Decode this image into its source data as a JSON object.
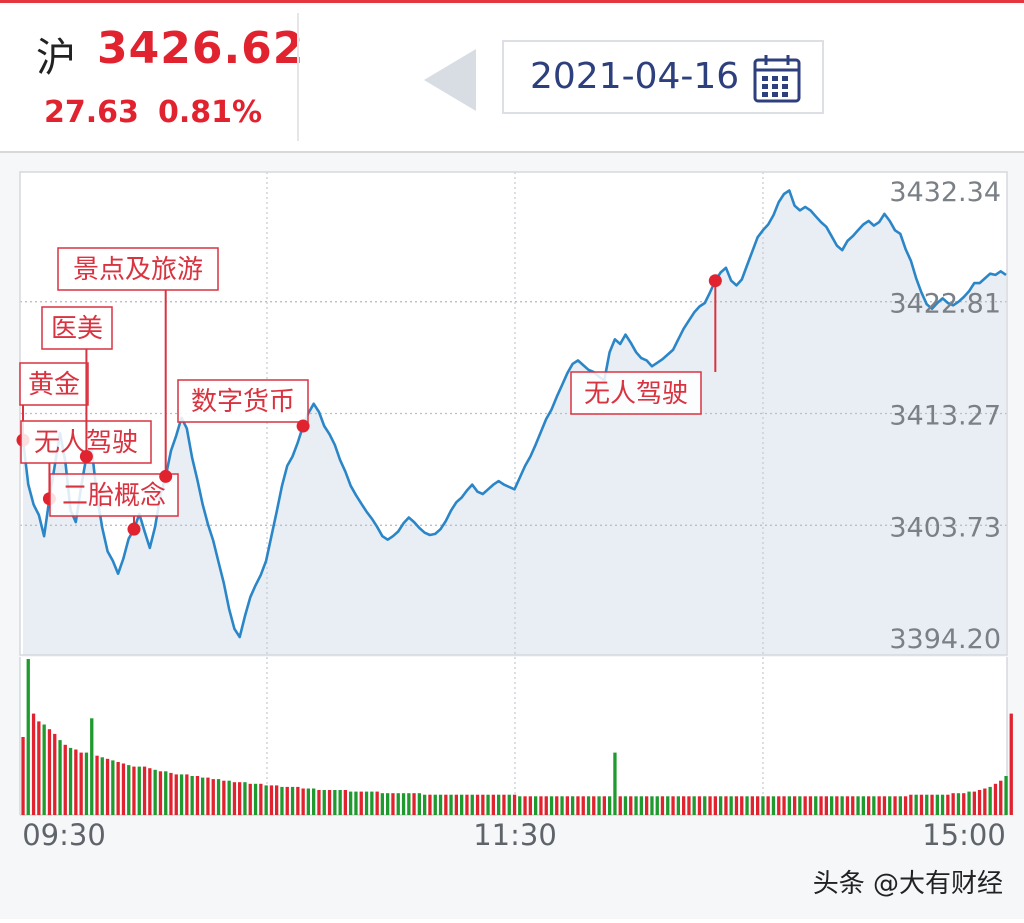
{
  "header": {
    "index_name": "沪",
    "index_value": "3426.62",
    "change": "27.63",
    "change_pct": "0.81%",
    "date": "2021-04-16",
    "up_color": "#e0232f"
  },
  "watermark": "头条 @大有财经",
  "chart_data": {
    "type": "line",
    "x_labels": [
      "09:30",
      "11:30",
      "15:00"
    ],
    "y_ticks": [
      "3432.34",
      "3422.81",
      "3413.27",
      "3403.73",
      "3394.20"
    ],
    "ylim": [
      3394.2,
      3432.34
    ],
    "line_color": "#2b86c8",
    "area_color": "#e9eef4",
    "prices": [
      3411.0,
      3407.2,
      3405.5,
      3404.6,
      3402.8,
      3406.0,
      3408.8,
      3411.6,
      3409.2,
      3405.0,
      3404.0,
      3407.0,
      3409.6,
      3410.3,
      3406.2,
      3403.5,
      3401.5,
      3400.7,
      3399.6,
      3400.9,
      3402.6,
      3403.4,
      3404.7,
      3403.2,
      3401.8,
      3403.6,
      3406.3,
      3407.9,
      3410.1,
      3411.4,
      3412.9,
      3412.0,
      3409.5,
      3407.6,
      3405.5,
      3403.8,
      3402.4,
      3400.6,
      3398.8,
      3396.6,
      3394.9,
      3394.2,
      3396.0,
      3397.6,
      3398.6,
      3399.5,
      3400.7,
      3402.8,
      3404.9,
      3407.1,
      3408.8,
      3409.6,
      3410.8,
      3412.2,
      3413.3,
      3414.1,
      3413.4,
      3412.2,
      3411.5,
      3410.6,
      3409.3,
      3408.3,
      3407.1,
      3406.3,
      3405.6,
      3404.9,
      3404.3,
      3403.6,
      3402.8,
      3402.5,
      3402.8,
      3403.2,
      3403.9,
      3404.4,
      3404.0,
      3403.5,
      3403.1,
      3402.9,
      3403.0,
      3403.4,
      3404.1,
      3405.0,
      3405.7,
      3406.1,
      3406.7,
      3407.2,
      3406.6,
      3406.4,
      3406.8,
      3407.2,
      3407.5,
      3407.2,
      3407.0,
      3406.8,
      3407.8,
      3408.8,
      3409.6,
      3410.6,
      3411.7,
      3412.8,
      3413.6,
      3414.7,
      3415.7,
      3416.7,
      3417.5,
      3417.8,
      3417.4,
      3417.0,
      3416.8,
      3416.4,
      3416.1,
      3418.5,
      3419.6,
      3419.2,
      3420.0,
      3419.3,
      3418.5,
      3418.0,
      3417.8,
      3417.3,
      3417.6,
      3417.9,
      3418.3,
      3418.7,
      3419.6,
      3420.5,
      3421.2,
      3421.9,
      3422.4,
      3422.7,
      3423.6,
      3424.6,
      3425.3,
      3425.7,
      3424.6,
      3424.2,
      3424.7,
      3425.9,
      3427.1,
      3428.3,
      3428.9,
      3429.4,
      3430.2,
      3431.3,
      3432.0,
      3432.3,
      3431.0,
      3430.6,
      3430.9,
      3430.6,
      3430.1,
      3429.6,
      3429.2,
      3428.4,
      3427.6,
      3427.2,
      3428.0,
      3428.4,
      3428.9,
      3429.4,
      3429.7,
      3429.3,
      3429.6,
      3430.3,
      3429.7,
      3428.9,
      3428.6,
      3427.3,
      3426.3,
      3424.8,
      3423.6,
      3422.6,
      3422.2,
      3422.7,
      3423.1,
      3422.7,
      3422.5,
      3422.8,
      3423.2,
      3423.7,
      3424.4,
      3424.4,
      3424.8,
      3425.2,
      3425.1,
      3425.4,
      3425.1
    ],
    "volumes": [
      50,
      100,
      65,
      60,
      58,
      55,
      52,
      48,
      45,
      43,
      42,
      40,
      40,
      62,
      38,
      37,
      36,
      35,
      34,
      33,
      32,
      31,
      31,
      31,
      30,
      29,
      28,
      28,
      27,
      26,
      26,
      26,
      25,
      25,
      24,
      24,
      23,
      23,
      22,
      22,
      21,
      21,
      21,
      20,
      20,
      20,
      19,
      19,
      19,
      18,
      18,
      18,
      18,
      17,
      17,
      17,
      16,
      16,
      16,
      16,
      16,
      16,
      15,
      15,
      15,
      15,
      15,
      15,
      14,
      14,
      14,
      14,
      14,
      14,
      14,
      14,
      13,
      13,
      13,
      13,
      13,
      13,
      13,
      13,
      13,
      13,
      13,
      13,
      13,
      13,
      13,
      13,
      13,
      13,
      12,
      12,
      12,
      12,
      12,
      12,
      12,
      12,
      12,
      12,
      12,
      12,
      12,
      12,
      12,
      12,
      12,
      12,
      40,
      12,
      12,
      12,
      12,
      12,
      12,
      12,
      12,
      12,
      12,
      12,
      12,
      12,
      12,
      12,
      12,
      12,
      12,
      12,
      12,
      12,
      12,
      12,
      12,
      12,
      12,
      12,
      12,
      12,
      12,
      12,
      12,
      12,
      12,
      12,
      12,
      12,
      12,
      12,
      12,
      12,
      12,
      12,
      12,
      12,
      12,
      12,
      12,
      12,
      12,
      12,
      12,
      12,
      12,
      12,
      13,
      13,
      13,
      13,
      13,
      13,
      13,
      13,
      14,
      14,
      14,
      15,
      15,
      16,
      17,
      18,
      20,
      22,
      25,
      65
    ],
    "volume_colors": [
      "r",
      "g",
      "r",
      "r",
      "g",
      "r",
      "r",
      "g",
      "r",
      "g",
      "r",
      "r",
      "g",
      "g",
      "r",
      "g",
      "r",
      "g",
      "r",
      "r",
      "g",
      "r",
      "g",
      "r",
      "r",
      "g",
      "r",
      "g",
      "r",
      "r",
      "g",
      "r",
      "g",
      "r",
      "g",
      "r",
      "r",
      "g",
      "r",
      "g",
      "r",
      "r",
      "g",
      "r",
      "g",
      "r",
      "g",
      "r",
      "r",
      "g",
      "r",
      "g",
      "r",
      "r",
      "g",
      "g",
      "r",
      "g",
      "r",
      "g",
      "g",
      "r",
      "g",
      "g",
      "r",
      "g",
      "g",
      "r",
      "g",
      "g",
      "r",
      "g",
      "g",
      "g",
      "r",
      "g",
      "g",
      "r",
      "g",
      "g",
      "r",
      "g",
      "r",
      "g",
      "r",
      "g",
      "r",
      "r",
      "g",
      "r",
      "g",
      "r",
      "g",
      "r",
      "g",
      "r",
      "r",
      "g",
      "r",
      "r",
      "g",
      "r",
      "g",
      "r",
      "g",
      "r",
      "r",
      "g",
      "r",
      "g",
      "r",
      "g",
      "g",
      "r",
      "g",
      "r",
      "g",
      "g",
      "r",
      "g",
      "g",
      "r",
      "g",
      "r",
      "g",
      "r",
      "r",
      "g",
      "r",
      "g",
      "r",
      "r",
      "g",
      "r",
      "g",
      "r",
      "r",
      "g",
      "r",
      "r",
      "g",
      "r",
      "g",
      "r",
      "r",
      "g",
      "r",
      "g",
      "r",
      "r",
      "g",
      "r",
      "r",
      "g",
      "r",
      "g",
      "r",
      "r",
      "g",
      "g",
      "r",
      "g",
      "r",
      "r",
      "g",
      "r",
      "g",
      "r",
      "r",
      "g",
      "r",
      "g",
      "r",
      "g",
      "g",
      "r",
      "r",
      "g",
      "r",
      "g",
      "r",
      "r",
      "r",
      "g",
      "r",
      "r",
      "g",
      "r",
      "g",
      "g"
    ],
    "annotations": [
      {
        "label": "黄金",
        "index": 0
      },
      {
        "label": "无人驾驶",
        "index": 5
      },
      {
        "label": "医美",
        "index": 12
      },
      {
        "label": "二胎概念",
        "index": 21
      },
      {
        "label": "景点及旅游",
        "index": 27
      },
      {
        "label": "数字货币",
        "index": 53
      },
      {
        "label": "无人驾驶",
        "index": 131
      }
    ]
  }
}
